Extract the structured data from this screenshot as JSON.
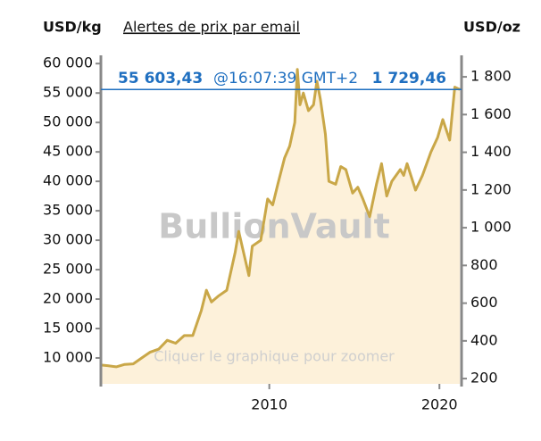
{
  "chart_data": {
    "type": "area",
    "y_label": "USD/kg",
    "link": "Alertes de prix par email",
    "y2_label": "USD/oz",
    "watermark": "BullionVault",
    "hint": "Cliquer le graphique pour zoomer",
    "current": {
      "values": [
        55603.43,
        1729.46
      ],
      "value_labels": [
        "55 603,43",
        "1 729,46"
      ],
      "time": "@16:07:39 GMT+2"
    },
    "xlim": [
      2000.1,
      2021.3
    ],
    "xticks": [
      2010,
      2020
    ],
    "ylim": [
      5600,
      61400
    ],
    "yticks": [
      {
        "value": 10000,
        "label": "10 000"
      },
      {
        "value": 15000,
        "label": "15 000"
      },
      {
        "value": 20000,
        "label": "20 000"
      },
      {
        "value": 25000,
        "label": "25 000"
      },
      {
        "value": 30000,
        "label": "30 000"
      },
      {
        "value": 35000,
        "label": "35 000"
      },
      {
        "value": 40000,
        "label": "40 000"
      },
      {
        "value": 45000,
        "label": "45 000"
      },
      {
        "value": 50000,
        "label": "50 000"
      },
      {
        "value": 55000,
        "label": "55 000"
      },
      {
        "value": 60000,
        "label": "60 000"
      }
    ],
    "y2lim": [
      172,
      1914
    ],
    "y2ticks": [
      200,
      400,
      600,
      800,
      {
        "value": 1000,
        "label": "1 000"
      },
      {
        "value": 1200,
        "label": "1 200"
      },
      {
        "value": 1400,
        "label": "1 400"
      },
      {
        "value": 1600,
        "label": "1 600"
      },
      {
        "value": 1800,
        "label": "1 800"
      }
    ],
    "series": [
      {
        "color": "#c9a748",
        "fill": "#fdf1da",
        "x": [
          2000.1,
          2000.5,
          2001,
          2001.5,
          2002,
          2002.5,
          2003,
          2003.5,
          2004,
          2004.5,
          2005,
          2005.5,
          2006,
          2006.3,
          2006.6,
          2007,
          2007.5,
          2008,
          2008.2,
          2008.8,
          2009,
          2009.5,
          2009.9,
          2010.2,
          2010.5,
          2010.9,
          2011.2,
          2011.5,
          2011.65,
          2011.8,
          2012,
          2012.3,
          2012.6,
          2012.8,
          2013,
          2013.3,
          2013.5,
          2013.9,
          2014.2,
          2014.5,
          2014.9,
          2015.2,
          2015.5,
          2015.9,
          2016.3,
          2016.6,
          2016.9,
          2017.2,
          2017.7,
          2017.9,
          2018.1,
          2018.6,
          2019,
          2019.5,
          2019.9,
          2020.2,
          2020.6,
          2020.9,
          2021.2
        ],
        "values": [
          8800,
          8700,
          8500,
          8900,
          9000,
          10000,
          11000,
          11500,
          13000,
          12500,
          13800,
          13800,
          18000,
          21500,
          19500,
          20500,
          21500,
          28000,
          31500,
          24000,
          29000,
          30000,
          37000,
          36000,
          39500,
          44000,
          46000,
          50000,
          59000,
          53000,
          55000,
          52000,
          53000,
          57000,
          54000,
          48000,
          40000,
          39500,
          42500,
          42000,
          38000,
          39000,
          37000,
          34000,
          39500,
          43000,
          37500,
          40000,
          42000,
          41000,
          43000,
          38500,
          41000,
          45000,
          47500,
          50500,
          47000,
          56000,
          55603.43
        ]
      }
    ]
  }
}
